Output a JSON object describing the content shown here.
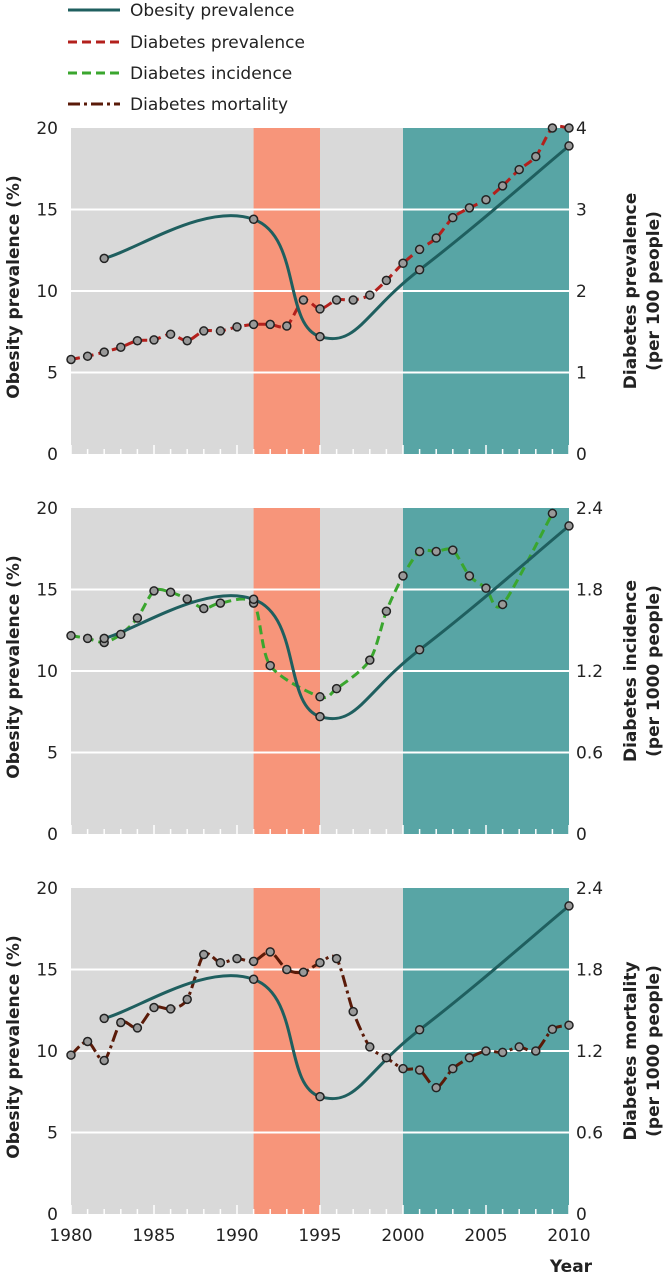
{
  "legend": [
    {
      "key": "obesity",
      "label": "Obesity prevalence",
      "color": "#1f5f5f",
      "dash": "solid"
    },
    {
      "key": "diab_prev",
      "label": "Diabetes prevalence",
      "color": "#b3201c",
      "dash": "dashed"
    },
    {
      "key": "diab_inc",
      "label": "Diabetes incidence",
      "color": "#3aa62e",
      "dash": "dashed"
    },
    {
      "key": "diab_mort",
      "label": "Diabetes mortality",
      "color": "#5a1a08",
      "dash": "dashdot"
    }
  ],
  "colors": {
    "background": "#d9d9d9",
    "period_red": "#f7957a",
    "period_teal": "#58a5a5",
    "grid": "#ffffff",
    "marker_fill": "#999999",
    "marker_stroke": "#222222"
  },
  "chart_data": [
    {
      "type": "line",
      "x_range": [
        1980,
        2010
      ],
      "x_ticks": [
        1980,
        1985,
        1990,
        1995,
        2000,
        2005,
        2010
      ],
      "shaded_periods": [
        {
          "from": 1991,
          "to": 1995,
          "color": "#f7957a"
        },
        {
          "from": 2000,
          "to": 2010,
          "color": "#58a5a5"
        }
      ],
      "ylabel_left": "Obesity prevalence (%)",
      "ylim_left": [
        0,
        20
      ],
      "yticks_left": [
        0,
        5,
        10,
        15,
        20
      ],
      "ylabel_right_lines": [
        "Diabetes prevalence",
        "(per 100 people)"
      ],
      "ylim_right": [
        0,
        4
      ],
      "yticks_right": [
        "0",
        "1",
        "2",
        "3",
        "4"
      ],
      "grid": true,
      "series": [
        {
          "name": "Obesity prevalence",
          "axis": "left",
          "x": [
            1982,
            1991,
            1995,
            2001,
            2010
          ],
          "y": [
            12.0,
            14.4,
            7.2,
            11.3,
            18.9
          ]
        },
        {
          "name": "Diabetes prevalence",
          "axis": "right",
          "x": [
            1980,
            1981,
            1982,
            1983,
            1984,
            1985,
            1986,
            1987,
            1988,
            1989,
            1990,
            1991,
            1992,
            1993,
            1994,
            1995,
            1996,
            1997,
            1998,
            1999,
            2000,
            2001,
            2002,
            2003,
            2004,
            2005,
            2006,
            2007,
            2008,
            2009,
            2010
          ],
          "y": [
            1.16,
            1.2,
            1.25,
            1.31,
            1.39,
            1.4,
            1.47,
            1.39,
            1.51,
            1.51,
            1.56,
            1.59,
            1.59,
            1.57,
            1.89,
            1.78,
            1.89,
            1.89,
            1.95,
            2.13,
            2.34,
            2.51,
            2.65,
            2.9,
            3.02,
            3.12,
            3.29,
            3.49,
            3.65,
            4.0,
            4.0
          ]
        }
      ]
    },
    {
      "type": "line",
      "x_range": [
        1980,
        2010
      ],
      "x_ticks": [
        1980,
        1985,
        1990,
        1995,
        2000,
        2005,
        2010
      ],
      "shaded_periods": [
        {
          "from": 1991,
          "to": 1995,
          "color": "#f7957a"
        },
        {
          "from": 2000,
          "to": 2010,
          "color": "#58a5a5"
        }
      ],
      "ylabel_left": "Obesity prevalence (%)",
      "ylim_left": [
        0,
        20
      ],
      "yticks_left": [
        0,
        5,
        10,
        15,
        20
      ],
      "ylabel_right_lines": [
        "Diabetes incidence",
        "(per 1000 people)"
      ],
      "ylim_right": [
        0,
        2.4
      ],
      "yticks_right": [
        "0",
        "0.6",
        "1.2",
        "1.8",
        "2.4"
      ],
      "grid": true,
      "series": [
        {
          "name": "Obesity prevalence",
          "axis": "left",
          "x": [
            1982,
            1991,
            1995,
            2001,
            2010
          ],
          "y": [
            12.0,
            14.4,
            7.2,
            11.3,
            18.9
          ]
        },
        {
          "name": "Diabetes incidence",
          "axis": "right",
          "x": [
            1980,
            1981,
            1982,
            1983,
            1984,
            1985,
            1986,
            1987,
            1988,
            1989,
            1991,
            1992,
            1995,
            1996,
            1998,
            1999,
            2000,
            2001,
            2002,
            2003,
            2004,
            2005,
            2006,
            2009
          ],
          "y": [
            1.46,
            1.44,
            1.41,
            1.47,
            1.59,
            1.79,
            1.78,
            1.73,
            1.66,
            1.7,
            1.7,
            1.24,
            1.01,
            1.07,
            1.28,
            1.64,
            1.9,
            2.08,
            2.08,
            2.09,
            1.9,
            1.81,
            1.69,
            2.36
          ]
        }
      ]
    },
    {
      "type": "line",
      "x_range": [
        1980,
        2010
      ],
      "x_ticks": [
        1980,
        1985,
        1990,
        1995,
        2000,
        2005,
        2010
      ],
      "shaded_periods": [
        {
          "from": 1991,
          "to": 1995,
          "color": "#f7957a"
        },
        {
          "from": 2000,
          "to": 2010,
          "color": "#58a5a5"
        }
      ],
      "ylabel_left": "Obesity prevalence (%)",
      "ylim_left": [
        0,
        20
      ],
      "yticks_left": [
        0,
        5,
        10,
        15,
        20
      ],
      "ylabel_right_lines": [
        "Diabetes mortality",
        "(per 1000 people)"
      ],
      "ylim_right": [
        0,
        2.4
      ],
      "yticks_right": [
        "0",
        "0.6",
        "1.2",
        "1.8",
        "2.4"
      ],
      "grid": true,
      "series": [
        {
          "name": "Obesity prevalence",
          "axis": "left",
          "x": [
            1982,
            1991,
            1995,
            2001,
            2010
          ],
          "y": [
            12.0,
            14.4,
            7.2,
            11.3,
            18.9
          ]
        },
        {
          "name": "Diabetes mortality",
          "axis": "right",
          "x": [
            1980,
            1981,
            1982,
            1983,
            1984,
            1985,
            1986,
            1987,
            1988,
            1989,
            1990,
            1991,
            1992,
            1993,
            1994,
            1995,
            1996,
            1997,
            1998,
            1999,
            2000,
            2001,
            2002,
            2003,
            2004,
            2005,
            2006,
            2007,
            2008,
            2009,
            2010
          ],
          "y": [
            1.17,
            1.27,
            1.13,
            1.41,
            1.37,
            1.52,
            1.51,
            1.58,
            1.91,
            1.85,
            1.88,
            1.86,
            1.93,
            1.8,
            1.78,
            1.85,
            1.88,
            1.49,
            1.23,
            1.15,
            1.07,
            1.06,
            0.93,
            1.07,
            1.15,
            1.2,
            1.19,
            1.23,
            1.2,
            1.36,
            1.39
          ]
        }
      ]
    }
  ],
  "x_axis_labels": [
    "1980",
    "1985",
    "1990",
    "1995",
    "2000",
    "2005",
    "2010"
  ],
  "x_axis_title": "Year"
}
